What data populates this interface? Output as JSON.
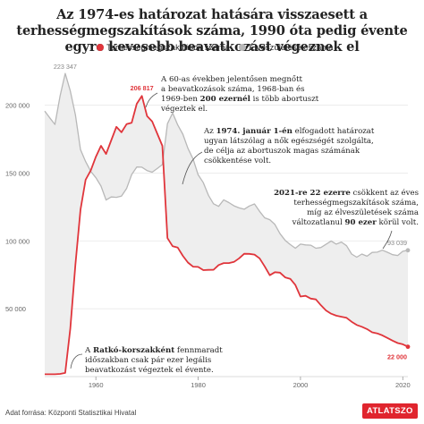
{
  "title": "Az 1974-es határozat hatására visszaesett a terhességmegszakítások száma, 1990 óta pedig évente egyre kevesebb beavatkozást végeznek el",
  "legend": {
    "abortion": "Terhességmegszakítások száma",
    "births": "Élveszületések száma"
  },
  "source": "Adat forrása: Központi Statisztikai Hivatal",
  "logo": "ATLATSZO",
  "colors": {
    "abortion": "#e0353b",
    "births": "#b8b8b8",
    "fill": "#eeeeee"
  },
  "annotations": {
    "a1": [
      "A 60-as években jelentősen megnőtt",
      "a beavatkozások száma, 1968-ban és",
      "1969-ben ",
      "200 ezernél",
      " is több abortuszt",
      "végeztek el."
    ],
    "a2": [
      "Az ",
      "1974. január 1-én",
      " elfogadott határozat",
      "ugyan látszólag a nők egészségét szolgálta,",
      "de célja az abortuszok magas számának",
      "csökkentése volt."
    ],
    "a3": [
      "2021-re 22 ezerre",
      " csökkent az éves",
      "terhességmegszakítások száma,",
      "míg az élveszületések száma",
      "változatlanul ",
      "90 ezer",
      " körül volt."
    ],
    "a4": [
      "A ",
      "Ratkó-korszakként",
      " fennmaradt",
      "időszakban csak pár ezer legális",
      "beavatkozást végeztek el évente."
    ]
  },
  "chart_data": {
    "type": "line",
    "title": "Az 1974-es határozat hatására visszaesett a terhességmegszakítások száma, 1990 óta pedig évente egyre kevesebb beavatkozást végeznek el",
    "xlabel": "",
    "ylabel": "",
    "xlim": [
      1950,
      2021
    ],
    "ylim": [
      0,
      230000
    ],
    "x_ticks": [
      "1960",
      "1980",
      "2000",
      "2020"
    ],
    "y_ticks": [
      "50 000",
      "100 000",
      "150 000",
      "200 000"
    ],
    "grid": "horizontal",
    "legend_position": "top",
    "series": [
      {
        "name": "Terhességmegszakítások száma",
        "color": "#e0353b",
        "x": [
          1950,
          1951,
          1952,
          1953,
          1954,
          1955,
          1956,
          1957,
          1958,
          1959,
          1960,
          1961,
          1962,
          1963,
          1964,
          1965,
          1966,
          1967,
          1968,
          1969,
          1970,
          1971,
          1972,
          1973,
          1974,
          1975,
          1976,
          1977,
          1978,
          1979,
          1980,
          1981,
          1982,
          1983,
          1984,
          1985,
          1986,
          1987,
          1988,
          1989,
          1990,
          1991,
          1992,
          1993,
          1994,
          1995,
          1996,
          1997,
          1998,
          1999,
          2000,
          2001,
          2002,
          2003,
          2004,
          2005,
          2006,
          2007,
          2008,
          2009,
          2010,
          2011,
          2012,
          2013,
          2014,
          2015,
          2016,
          2017,
          2018,
          2019,
          2020,
          2021
        ],
        "values": [
          1700,
          1700,
          1700,
          2000,
          2700,
          35400,
          82500,
          123000,
          145000,
          152000,
          162000,
          170000,
          164000,
          174000,
          184000,
          180000,
          186000,
          187000,
          201000,
          206817,
          192000,
          188000,
          179000,
          170000,
          102000,
          96000,
          95000,
          89000,
          84000,
          81000,
          80800,
          78400,
          78600,
          78700,
          82200,
          83600,
          83600,
          84500,
          87100,
          90500,
          90400,
          89900,
          87100,
          81200,
          74700,
          76900,
          76600,
          73100,
          72000,
          67500,
          59000,
          59500,
          57500,
          56900,
          52500,
          48700,
          46300,
          44900,
          44100,
          43300,
          40400,
          38000,
          36700,
          35000,
          32600,
          31800,
          30400,
          28500,
          26500,
          24700,
          23800,
          22000
        ]
      },
      {
        "name": "Élveszületések száma",
        "color": "#b8b8b8",
        "x": [
          1950,
          1951,
          1952,
          1953,
          1954,
          1955,
          1956,
          1957,
          1958,
          1959,
          1960,
          1961,
          1962,
          1963,
          1964,
          1965,
          1966,
          1967,
          1968,
          1969,
          1970,
          1971,
          1972,
          1973,
          1974,
          1975,
          1976,
          1977,
          1978,
          1979,
          1980,
          1981,
          1982,
          1983,
          1984,
          1985,
          1986,
          1987,
          1988,
          1989,
          1990,
          1991,
          1992,
          1993,
          1994,
          1995,
          1996,
          1997,
          1998,
          1999,
          2000,
          2001,
          2002,
          2003,
          2004,
          2005,
          2006,
          2007,
          2008,
          2009,
          2010,
          2011,
          2012,
          2013,
          2014,
          2015,
          2016,
          2017,
          2018,
          2019,
          2020,
          2021
        ],
        "values": [
          195600,
          190600,
          185800,
          206900,
          223347,
          210400,
          192800,
          167200,
          158400,
          151200,
          146500,
          140400,
          130100,
          132300,
          132100,
          133000,
          138500,
          148900,
          154400,
          154300,
          151800,
          150600,
          153300,
          156200,
          186300,
          194200,
          185400,
          178600,
          168200,
          160400,
          148700,
          142900,
          133600,
          127300,
          125400,
          130200,
          128200,
          125800,
          124300,
          123300,
          125700,
          127200,
          121700,
          117000,
          115600,
          112100,
          105300,
          100400,
          97300,
          94600,
          97600,
          97000,
          96800,
          94600,
          95100,
          97500,
          99900,
          97600,
          99100,
          96400,
          90300,
          88000,
          90300,
          88700,
          91500,
          91700,
          93100,
          91600,
          89800,
          89200,
          92300,
          93039
        ]
      }
    ],
    "data_labels": [
      "223 347",
      "206 817",
      "93 039",
      "22 000"
    ]
  }
}
